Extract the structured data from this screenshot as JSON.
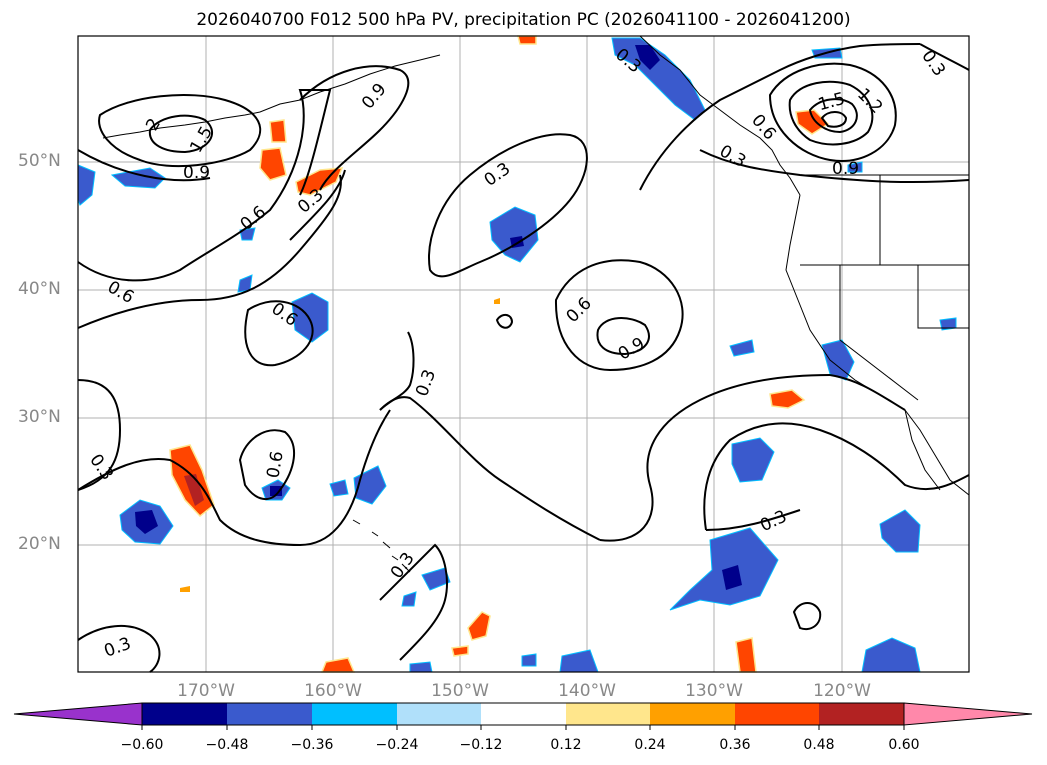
{
  "title": "2026040700 F012 500 hPa PV, precipitation PC (2026041100 - 2026041200)",
  "latitude_labels": [
    "50°N",
    "40°N",
    "30°N",
    "20°N"
  ],
  "longitude_labels": [
    "170°W",
    "160°W",
    "150°W",
    "140°W",
    "130°W",
    "120°W"
  ],
  "contour_labels": [
    "2",
    "1.5",
    "0.9",
    "0.9",
    "0.6",
    "0.3",
    "0.6",
    "0.6",
    "0.3",
    "0.3",
    "0.6",
    "0.9",
    "0.3",
    "0.3",
    "0.3",
    "0.6",
    "0.3",
    "0.3",
    "0.6",
    "0.3",
    "1.5",
    "1.2",
    "0.9",
    "0.3"
  ],
  "colorbar": {
    "tick_labels": [
      "−0.60",
      "−0.48",
      "−0.36",
      "−0.24",
      "−0.12",
      "0.12",
      "0.24",
      "0.36",
      "0.48",
      "0.60"
    ],
    "colors": [
      "#9932cc",
      "#00008b",
      "#3a5acd",
      "#00bfff",
      "#b0e0fa",
      "#ffffff",
      "#ffe68c",
      "#ffa000",
      "#ff4500",
      "#b22222",
      "#ff88aa"
    ]
  },
  "colors": {
    "contour": "#000000",
    "coast": "#000000",
    "grid": "#b0b0b0",
    "axis_label": "#888888"
  }
}
